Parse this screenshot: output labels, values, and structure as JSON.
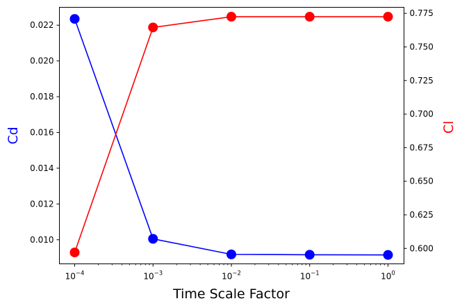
{
  "chart_data": {
    "type": "line",
    "title": "",
    "xlabel": "Time Scale Factor",
    "x_scale": "log",
    "x": [
      0.0001,
      0.001,
      0.01,
      0.1,
      1
    ],
    "xticks": [
      {
        "value": 0.0001,
        "base": "10",
        "exp": "−4"
      },
      {
        "value": 0.001,
        "base": "10",
        "exp": "−3"
      },
      {
        "value": 0.01,
        "base": "10",
        "exp": "−2"
      },
      {
        "value": 0.1,
        "base": "10",
        "exp": "−1"
      },
      {
        "value": 1,
        "base": "10",
        "exp": "0"
      }
    ],
    "left_axis": {
      "label": "Cd",
      "color": "#0000ff",
      "ylim": [
        0.00865,
        0.023
      ],
      "ticks": [
        "0.010",
        "0.012",
        "0.014",
        "0.016",
        "0.018",
        "0.020",
        "0.022"
      ],
      "tick_values": [
        0.01,
        0.012,
        0.014,
        0.016,
        0.018,
        0.02,
        0.022
      ]
    },
    "right_axis": {
      "label": "Cl",
      "color": "#ff0000",
      "ylim": [
        0.5885,
        0.7795
      ],
      "ticks": [
        "0.600",
        "0.625",
        "0.650",
        "0.675",
        "0.700",
        "0.725",
        "0.750",
        "0.775"
      ],
      "tick_values": [
        0.6,
        0.625,
        0.65,
        0.675,
        0.7,
        0.725,
        0.75,
        0.775
      ]
    },
    "series": [
      {
        "axis": "left",
        "color": "#0000ff",
        "marker": "circle",
        "values": [
          0.02235,
          0.01005,
          0.00918,
          0.00916,
          0.00915
        ]
      },
      {
        "axis": "right",
        "color": "#ff0000",
        "marker": "circle",
        "values": [
          0.597,
          0.7645,
          0.7725,
          0.7725,
          0.7725
        ]
      }
    ],
    "grid": false,
    "legend": "none"
  }
}
